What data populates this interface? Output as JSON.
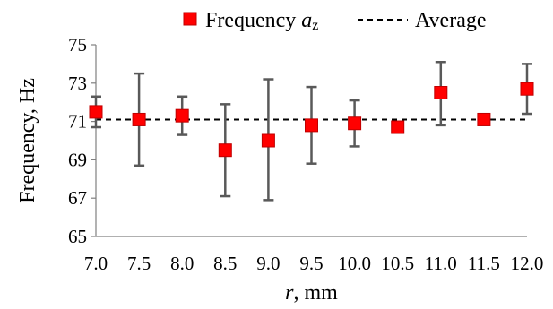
{
  "chart_data": {
    "type": "scatter",
    "xlabel": {
      "var": "r",
      "unit": ", mm"
    },
    "ylabel": "Frequency, Hz",
    "xlim": [
      7.0,
      12.0
    ],
    "ylim": [
      65,
      75
    ],
    "x_ticks": [
      "7.0",
      "7.5",
      "8.0",
      "8.5",
      "9.0",
      "9.5",
      "10.0",
      "10.5",
      "11.0",
      "11.5",
      "12.0"
    ],
    "y_ticks": [
      "65",
      "67",
      "69",
      "71",
      "73",
      "75"
    ],
    "grid": false,
    "legend_position": "top",
    "series": [
      {
        "name": "Frequency a_z",
        "legend_label": {
          "main": "Frequency ",
          "var": "a",
          "sub": "z"
        },
        "color": "#ff0000",
        "marker": "square",
        "points": [
          {
            "x": 7.0,
            "y": 71.5,
            "low": 70.7,
            "high": 72.3
          },
          {
            "x": 7.5,
            "y": 71.1,
            "low": 68.7,
            "high": 73.5
          },
          {
            "x": 8.0,
            "y": 71.3,
            "low": 70.3,
            "high": 72.3
          },
          {
            "x": 8.5,
            "y": 69.5,
            "low": 67.1,
            "high": 71.9
          },
          {
            "x": 9.0,
            "y": 70.0,
            "low": 66.9,
            "high": 73.2
          },
          {
            "x": 9.5,
            "y": 70.8,
            "low": 68.8,
            "high": 72.8
          },
          {
            "x": 10.0,
            "y": 70.9,
            "low": 69.7,
            "high": 72.1
          },
          {
            "x": 10.5,
            "y": 70.7,
            "low": 70.7,
            "high": 70.7
          },
          {
            "x": 11.0,
            "y": 72.5,
            "low": 70.8,
            "high": 74.1
          },
          {
            "x": 11.5,
            "y": 71.1,
            "low": 71.1,
            "high": 71.1
          },
          {
            "x": 12.0,
            "y": 72.7,
            "low": 71.4,
            "high": 74.0
          }
        ],
        "errorbar_color": "#595959"
      },
      {
        "name": "Average",
        "type": "line",
        "dashed": true,
        "color": "#000000",
        "y": 71.1
      }
    ]
  }
}
